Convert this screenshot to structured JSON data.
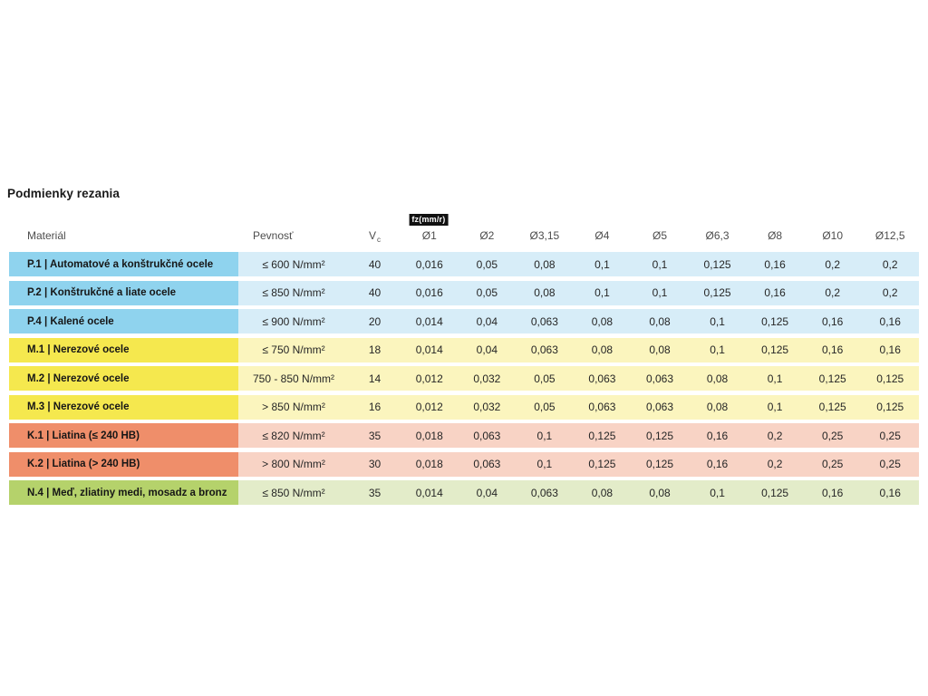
{
  "page": {
    "title": "Podmienky rezania"
  },
  "table": {
    "fz_unit_badge": "fz(mm/r)",
    "headers": {
      "material": "Materiál",
      "pevnost": "Pevnosť",
      "vc": "V",
      "vc_sub": "c",
      "diameters": [
        "Ø1",
        "Ø2",
        "Ø3,15",
        "Ø4",
        "Ø5",
        "Ø6,3",
        "Ø8",
        "Ø10",
        "Ø12,5"
      ]
    },
    "colors": {
      "P": {
        "label": "#8FD3EE",
        "cells": "#D7EDF8"
      },
      "M": {
        "label": "#F5E84E",
        "cells": "#FBF5BE"
      },
      "K": {
        "label": "#EF8E6A",
        "cells": "#F8D3C5"
      },
      "N": {
        "label": "#B5D26B",
        "cells": "#E3ECC9"
      }
    },
    "rows": [
      {
        "group": "P",
        "material": "P.1 | Automatové a konštrukčné ocele",
        "pevnost": "≤ 600 N/mm²",
        "vc": "40",
        "fz": [
          "0,016",
          "0,05",
          "0,08",
          "0,1",
          "0,1",
          "0,125",
          "0,16",
          "0,2",
          "0,2"
        ]
      },
      {
        "group": "P",
        "material": "P.2 | Konštrukčné a liate ocele",
        "pevnost": "≤ 850 N/mm²",
        "vc": "40",
        "fz": [
          "0,016",
          "0,05",
          "0,08",
          "0,1",
          "0,1",
          "0,125",
          "0,16",
          "0,2",
          "0,2"
        ]
      },
      {
        "group": "P",
        "material": "P.4 | Kalené ocele",
        "pevnost": "≤ 900 N/mm²",
        "vc": "20",
        "fz": [
          "0,014",
          "0,04",
          "0,063",
          "0,08",
          "0,08",
          "0,1",
          "0,125",
          "0,16",
          "0,16"
        ]
      },
      {
        "group": "M",
        "material": "M.1 | Nerezové ocele",
        "pevnost": "≤ 750 N/mm²",
        "vc": "18",
        "fz": [
          "0,014",
          "0,04",
          "0,063",
          "0,08",
          "0,08",
          "0,1",
          "0,125",
          "0,16",
          "0,16"
        ]
      },
      {
        "group": "M",
        "material": "M.2 | Nerezové ocele",
        "pevnost": "750 - 850 N/mm²",
        "vc": "14",
        "fz": [
          "0,012",
          "0,032",
          "0,05",
          "0,063",
          "0,063",
          "0,08",
          "0,1",
          "0,125",
          "0,125"
        ]
      },
      {
        "group": "M",
        "material": "M.3 | Nerezové ocele",
        "pevnost": "> 850 N/mm²",
        "vc": "16",
        "fz": [
          "0,012",
          "0,032",
          "0,05",
          "0,063",
          "0,063",
          "0,08",
          "0,1",
          "0,125",
          "0,125"
        ]
      },
      {
        "group": "K",
        "material": "K.1 | Liatina (≤ 240 HB)",
        "pevnost": "≤ 820 N/mm²",
        "vc": "35",
        "fz": [
          "0,018",
          "0,063",
          "0,1",
          "0,125",
          "0,125",
          "0,16",
          "0,2",
          "0,25",
          "0,25"
        ]
      },
      {
        "group": "K",
        "material": "K.2 | Liatina (> 240 HB)",
        "pevnost": "> 800 N/mm²",
        "vc": "30",
        "fz": [
          "0,018",
          "0,063",
          "0,1",
          "0,125",
          "0,125",
          "0,16",
          "0,2",
          "0,25",
          "0,25"
        ]
      },
      {
        "group": "N",
        "material": "N.4 | Meď, zliatiny medi, mosadz a bronz",
        "pevnost": "≤ 850 N/mm²",
        "vc": "35",
        "fz": [
          "0,014",
          "0,04",
          "0,063",
          "0,08",
          "0,08",
          "0,1",
          "0,125",
          "0,16",
          "0,16"
        ]
      }
    ]
  }
}
